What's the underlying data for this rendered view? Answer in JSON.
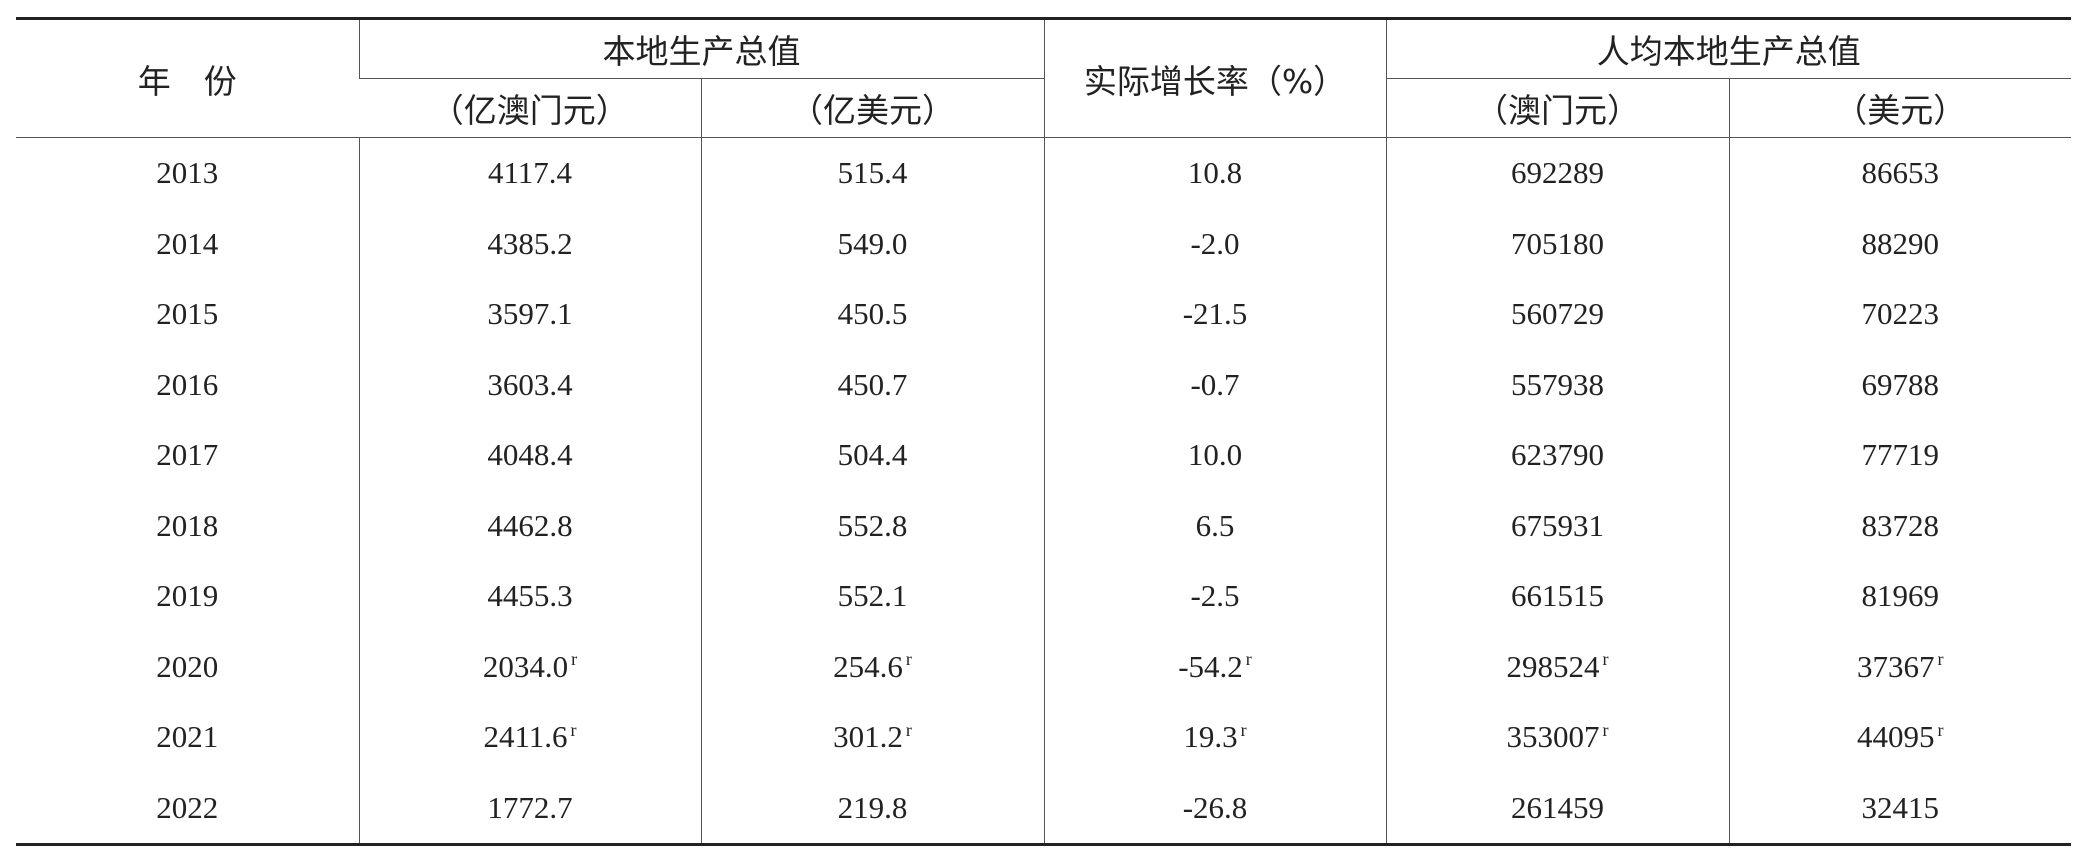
{
  "header": {
    "year": "年　份",
    "gdp": "本地生产总值",
    "gdp_mop": "（亿澳门元）",
    "gdp_usd": "（亿美元）",
    "growth": "实际增长率（%）",
    "per_capita": "人均本地生产总值",
    "pc_mop": "（澳门元）",
    "pc_usd": "（美元）"
  },
  "rows": [
    [
      "2013",
      "4117.4",
      "515.4",
      "10.8",
      "692289",
      "86653"
    ],
    [
      "2014",
      "4385.2",
      "549.0",
      "-2.0",
      "705180",
      "88290"
    ],
    [
      "2015",
      "3597.1",
      "450.5",
      "-21.5",
      "560729",
      "70223"
    ],
    [
      "2016",
      "3603.4",
      "450.7",
      "-0.7",
      "557938",
      "69788"
    ],
    [
      "2017",
      "4048.4",
      "504.4",
      "10.0",
      "623790",
      "77719"
    ],
    [
      "2018",
      "4462.8",
      "552.8",
      "6.5",
      "675931",
      "83728"
    ],
    [
      "2019",
      "4455.3",
      "552.1",
      "-2.5",
      "661515",
      "81969"
    ],
    [
      "2020",
      {
        "text": "2034.0",
        "note": "r"
      },
      {
        "text": "254.6",
        "note": "r"
      },
      {
        "text": "-54.2",
        "note": "r"
      },
      {
        "text": "298524",
        "note": "r"
      },
      {
        "text": "37367",
        "note": "r"
      }
    ],
    [
      "2021",
      {
        "text": "2411.6",
        "note": "r"
      },
      {
        "text": "301.2",
        "note": "r"
      },
      {
        "text": "19.3",
        "note": "r"
      },
      {
        "text": "353007",
        "note": "r"
      },
      {
        "text": "44095",
        "note": "r"
      }
    ],
    [
      "2022",
      "1772.7",
      "219.8",
      "-26.8",
      "261459",
      "32415"
    ]
  ]
}
